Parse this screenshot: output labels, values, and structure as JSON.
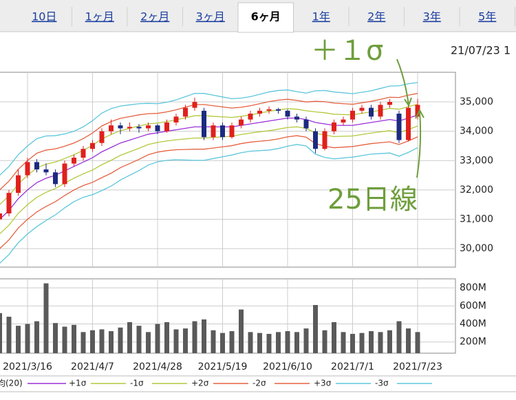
{
  "tabs": [
    "10日",
    "1ヶ月",
    "2ヶ月",
    "3ヶ月",
    "6ヶ月",
    "1年",
    "2年",
    "3年",
    "5年"
  ],
  "active_tab": 4,
  "timestamp": "21/07/23 1",
  "annotations": [
    "＋１σ",
    "25日線"
  ],
  "chart_data": [
    {
      "type": "candlestick",
      "categories": [
        null,
        null,
        null,
        "2021/3/16",
        null,
        null,
        null,
        null,
        null,
        null,
        "2021/4/7",
        null,
        null,
        null,
        null,
        null,
        null,
        "2021/4/28",
        null,
        null,
        null,
        null,
        null,
        null,
        "2021/5/19",
        null,
        null,
        null,
        null,
        null,
        null,
        "2021/6/10",
        null,
        null,
        null,
        null,
        null,
        null,
        "2021/7/1",
        null,
        null,
        null,
        null,
        null,
        null,
        "2021/7/23"
      ],
      "ohlc": [
        [
          31000,
          31400,
          30900,
          31200
        ],
        [
          31200,
          32000,
          31100,
          31900
        ],
        [
          31900,
          32700,
          31800,
          32500
        ],
        [
          32500,
          33100,
          32400,
          32950
        ],
        [
          32950,
          33050,
          32600,
          32700
        ],
        [
          32700,
          32900,
          32500,
          32600
        ],
        [
          32600,
          32700,
          32100,
          32200
        ],
        [
          32200,
          33000,
          32100,
          32900
        ],
        [
          32900,
          33200,
          32800,
          33100
        ],
        [
          33100,
          33500,
          33000,
          33400
        ],
        [
          33400,
          33700,
          33300,
          33600
        ],
        [
          33600,
          34100,
          33500,
          34000
        ],
        [
          34000,
          34400,
          33900,
          34200
        ],
        [
          34200,
          34300,
          33900,
          34100
        ],
        [
          34100,
          34300,
          34000,
          34150
        ],
        [
          34150,
          34250,
          33950,
          34100
        ],
        [
          34100,
          34300,
          34000,
          34200
        ],
        [
          34200,
          34250,
          33900,
          34000
        ],
        [
          34000,
          34400,
          33950,
          34300
        ],
        [
          34300,
          34600,
          34200,
          34500
        ],
        [
          34500,
          34900,
          34400,
          34800
        ],
        [
          34800,
          35150,
          34700,
          35000
        ],
        [
          34700,
          34800,
          33700,
          33800
        ],
        [
          33800,
          34300,
          33700,
          34200
        ],
        [
          34200,
          34300,
          33700,
          33800
        ],
        [
          33800,
          34300,
          33750,
          34200
        ],
        [
          34200,
          34500,
          34100,
          34400
        ],
        [
          34400,
          34700,
          34300,
          34600
        ],
        [
          34600,
          34800,
          34500,
          34700
        ],
        [
          34700,
          34850,
          34600,
          34750
        ],
        [
          34750,
          34800,
          34600,
          34700
        ],
        [
          34700,
          34750,
          34400,
          34500
        ],
        [
          34500,
          34600,
          34300,
          34400
        ],
        [
          34400,
          34500,
          34000,
          34100
        ],
        [
          34000,
          34100,
          33250,
          33400
        ],
        [
          33400,
          34100,
          33350,
          34000
        ],
        [
          34000,
          34400,
          33900,
          34300
        ],
        [
          34300,
          34500,
          34200,
          34400
        ],
        [
          34400,
          34800,
          34300,
          34700
        ],
        [
          34700,
          34900,
          34600,
          34800
        ],
        [
          34800,
          34900,
          34400,
          34500
        ],
        [
          34500,
          35000,
          34400,
          34900
        ],
        [
          34900,
          35100,
          34800,
          35000
        ],
        [
          34600,
          34700,
          33600,
          33700
        ],
        [
          33700,
          34900,
          33650,
          34800
        ],
        [
          34500,
          35100,
          34400,
          34900
        ]
      ],
      "up_color": "#e0201c",
      "down_color": "#1c2a80",
      "series": [
        {
          "name": "均(20)",
          "color": "#9b2fd6",
          "values": [
            31000,
            31300,
            31700,
            32000,
            32250,
            32400,
            32500,
            32650,
            32800,
            32950,
            33100,
            33300,
            33450,
            33600,
            33700,
            33800,
            33900,
            33950,
            34000,
            34050,
            34100,
            34150,
            34150,
            34150,
            34150,
            34150,
            34200,
            34250,
            34300,
            34350,
            34400,
            34450,
            34450,
            34400,
            34300,
            34250,
            34200,
            34200,
            34200,
            34250,
            34300,
            34350,
            34400,
            34350,
            34450,
            34550
          ]
        },
        {
          "name": "+1σ",
          "color": "#b3c83c",
          "values": [
            31500,
            31800,
            32200,
            32500,
            32750,
            32880,
            32950,
            33070,
            33200,
            33350,
            33520,
            33740,
            33890,
            34020,
            34100,
            34180,
            34250,
            34280,
            34330,
            34390,
            34460,
            34530,
            34530,
            34510,
            34490,
            34470,
            34510,
            34560,
            34620,
            34680,
            34730,
            34770,
            34750,
            34700,
            34660,
            34630,
            34580,
            34570,
            34560,
            34610,
            34660,
            34720,
            34780,
            34750,
            34840,
            34920
          ]
        },
        {
          "name": "-1σ",
          "color": "#b3c83c",
          "values": [
            30500,
            30800,
            31200,
            31500,
            31750,
            31920,
            32050,
            32230,
            32400,
            32550,
            32680,
            32860,
            33010,
            33180,
            33300,
            33420,
            33550,
            33620,
            33670,
            33710,
            33740,
            33770,
            33770,
            33790,
            33810,
            33830,
            33890,
            33940,
            33980,
            34020,
            34070,
            34130,
            34150,
            34100,
            33940,
            33870,
            33820,
            33830,
            33840,
            33890,
            33940,
            33980,
            34020,
            33950,
            34060,
            34180
          ]
        },
        {
          "name": "+2σ",
          "color": "#e5603f",
          "values": [
            32000,
            32300,
            32700,
            33000,
            33250,
            33360,
            33400,
            33490,
            33600,
            33750,
            33940,
            34180,
            34330,
            34440,
            34500,
            34560,
            34600,
            34610,
            34660,
            34730,
            34820,
            34910,
            34910,
            34870,
            34830,
            34790,
            34820,
            34870,
            34940,
            35010,
            35060,
            35090,
            35050,
            35000,
            35020,
            35010,
            34960,
            34940,
            34920,
            34970,
            35020,
            35090,
            35160,
            35150,
            35230,
            35290
          ]
        },
        {
          "name": "-2σ",
          "color": "#e5603f",
          "values": [
            30000,
            30300,
            30700,
            31000,
            31250,
            31440,
            31600,
            31810,
            32000,
            32150,
            32260,
            32420,
            32570,
            32760,
            32900,
            33040,
            33200,
            33290,
            33340,
            33370,
            33380,
            33390,
            33390,
            33430,
            33470,
            33510,
            33580,
            33630,
            33660,
            33690,
            33740,
            33810,
            33850,
            33800,
            33580,
            33490,
            33440,
            33460,
            33480,
            33530,
            33580,
            33610,
            33640,
            33550,
            33670,
            33810
          ]
        },
        {
          "name": "+3σ",
          "color": "#5cc6dc",
          "values": [
            32500,
            32800,
            33200,
            33500,
            33750,
            33840,
            33850,
            33910,
            34000,
            34150,
            34360,
            34620,
            34770,
            34860,
            34900,
            34940,
            34950,
            34940,
            34990,
            35070,
            35180,
            35290,
            35290,
            35230,
            35170,
            35110,
            35130,
            35180,
            35260,
            35340,
            35390,
            35410,
            35350,
            35300,
            35380,
            35390,
            35340,
            35310,
            35280,
            35330,
            35380,
            35460,
            35540,
            35550,
            35620,
            35660
          ]
        },
        {
          "name": "-3σ",
          "color": "#5cc6dc",
          "values": [
            29500,
            29800,
            30200,
            30500,
            30750,
            30960,
            31150,
            31390,
            31600,
            31750,
            31840,
            31980,
            32130,
            32340,
            32500,
            32660,
            32850,
            32960,
            33010,
            33030,
            33020,
            33010,
            33010,
            33070,
            33130,
            33190,
            33270,
            33320,
            33340,
            33360,
            33410,
            33490,
            33550,
            33500,
            33220,
            33110,
            33060,
            33090,
            33120,
            33170,
            33220,
            33240,
            33260,
            33150,
            33280,
            33440
          ]
        }
      ],
      "ylim": [
        29370,
        36010
      ],
      "yticks": [
        {
          "value": 30000,
          "label": "30,000"
        },
        {
          "value": 31000,
          "label": "31,000"
        },
        {
          "value": 32000,
          "label": "32,000"
        },
        {
          "value": 33000,
          "label": "33,000"
        },
        {
          "value": 34000,
          "label": "34,000"
        },
        {
          "value": 35000,
          "label": "35,000"
        }
      ],
      "grid": true
    },
    {
      "type": "bar",
      "values": [
        520,
        480,
        380,
        400,
        430,
        850,
        410,
        370,
        390,
        310,
        330,
        340,
        320,
        360,
        420,
        380,
        310,
        400,
        420,
        340,
        350,
        430,
        450,
        330,
        300,
        320,
        560,
        310,
        300,
        290,
        310,
        320,
        310,
        350,
        610,
        330,
        420,
        310,
        290,
        300,
        320,
        310,
        330,
        430,
        350,
        310
      ],
      "color": "#5a5a5a",
      "ylim": [
        76,
        900
      ],
      "yticks": [
        {
          "value": 200,
          "label": "200M"
        },
        {
          "value": 400,
          "label": "400M"
        },
        {
          "value": 600,
          "label": "600M"
        },
        {
          "value": 800,
          "label": "800M"
        }
      ],
      "grid": true
    }
  ]
}
